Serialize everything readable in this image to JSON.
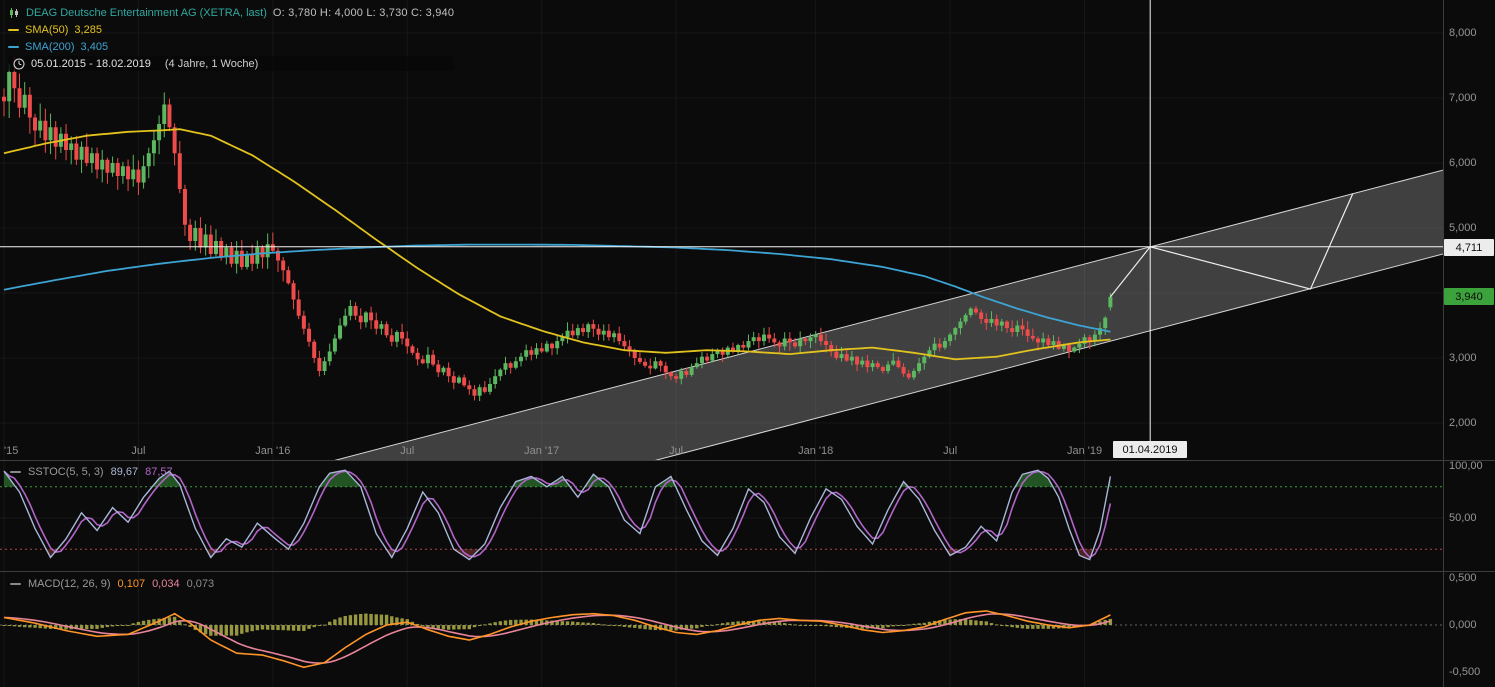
{
  "legend": {
    "instrument": "DEAG Deutsche Entertainment AG (XETRA, last)",
    "ohlc_text": "O: 3,780  H: 4,000  L: 3,730  C: 3,940",
    "sma50_label": "SMA(50)",
    "sma50_value": "3,285",
    "sma200_label": "SMA(200)",
    "sma200_value": "3,405",
    "range_text": "05.01.2015 - 18.02.2019",
    "range_note": "(4 Jahre, 1 Woche)"
  },
  "stoch_legend": {
    "name": "SSTOC(5, 5, 3)",
    "k": "89,67",
    "d": "87,57"
  },
  "macd_legend": {
    "name": "MACD(12, 26, 9)",
    "v1": "0,107",
    "v2": "0,034",
    "v3": "0,073"
  },
  "badges": {
    "price_cross": "4,711",
    "last_price": "3,940",
    "date_cross": "01.04.2019"
  },
  "colors": {
    "background": "#0b0b0b",
    "up": "#5cb860",
    "down": "#ee4b4b",
    "sma50": "#e2c21d",
    "sma200": "#3da3d2",
    "channel_fill": "rgba(173,173,173,0.33)",
    "channel_stroke": "#d5d5d5",
    "crosshair": "#f5f5f5",
    "stoch_k": "#a9b6d9",
    "stoch_d": "#b264c8",
    "overbought": "#3c9e3c",
    "oversold": "#b04848",
    "macd_hist": "#97973f",
    "macd_line": "#ff9528",
    "macd_signal": "#e8849a",
    "axis_text": "#969696",
    "divider": "#3d3d3d"
  },
  "chart_data": {
    "type": "candlestick",
    "interval": "1 Woche",
    "range": "05.01.2015 - 18.02.2019",
    "price_ticks": [
      {
        "v": 8.0,
        "label": "8,000"
      },
      {
        "v": 7.0,
        "label": "7,000"
      },
      {
        "v": 6.0,
        "label": "6,000"
      },
      {
        "v": 5.0,
        "label": "5,000"
      },
      {
        "v": 4.0,
        "label": "4,000"
      },
      {
        "v": 3.0,
        "label": "3,000"
      },
      {
        "v": 2.0,
        "label": "2,000"
      }
    ],
    "time_ticks": [
      {
        "week": 0,
        "label": "'15"
      },
      {
        "week": 26,
        "label": "Jul"
      },
      {
        "week": 52,
        "label": "Jan '16"
      },
      {
        "week": 78,
        "label": "Jul"
      },
      {
        "week": 104,
        "label": "Jan '17"
      },
      {
        "week": 130,
        "label": "Jul"
      },
      {
        "week": 157,
        "label": "Jan '18"
      },
      {
        "week": 183,
        "label": "Jul"
      },
      {
        "week": 209,
        "label": "Jan '19"
      }
    ],
    "closes": [
      6.95,
      7.4,
      7.15,
      6.85,
      7.05,
      6.7,
      6.5,
      6.65,
      6.35,
      6.55,
      6.25,
      6.45,
      6.2,
      6.3,
      6.05,
      6.25,
      6.0,
      6.15,
      5.9,
      6.05,
      5.85,
      6.0,
      5.8,
      5.95,
      5.75,
      5.9,
      5.7,
      5.95,
      6.15,
      6.35,
      6.6,
      6.9,
      6.55,
      6.15,
      5.6,
      5.05,
      4.8,
      5.0,
      4.7,
      4.9,
      4.6,
      4.8,
      4.55,
      4.7,
      4.45,
      4.65,
      4.4,
      4.6,
      4.45,
      4.7,
      4.55,
      4.75,
      4.65,
      4.5,
      4.35,
      4.15,
      3.9,
      3.65,
      3.45,
      3.25,
      3.0,
      2.8,
      2.95,
      3.1,
      3.3,
      3.5,
      3.65,
      3.8,
      3.65,
      3.55,
      3.7,
      3.58,
      3.45,
      3.52,
      3.35,
      3.25,
      3.4,
      3.3,
      3.18,
      3.08,
      2.98,
      2.92,
      3.05,
      2.9,
      2.78,
      2.85,
      2.72,
      2.62,
      2.7,
      2.58,
      2.52,
      2.42,
      2.55,
      2.48,
      2.6,
      2.72,
      2.82,
      2.92,
      2.85,
      2.95,
      3.02,
      3.12,
      3.05,
      3.15,
      3.1,
      3.22,
      3.15,
      3.26,
      3.32,
      3.42,
      3.35,
      3.46,
      3.4,
      3.52,
      3.45,
      3.36,
      3.42,
      3.32,
      3.38,
      3.26,
      3.18,
      3.1,
      3.0,
      2.94,
      2.88,
      2.84,
      2.95,
      2.88,
      2.78,
      2.72,
      2.68,
      2.8,
      2.74,
      2.86,
      2.92,
      3.02,
      2.96,
      3.06,
      3.12,
      3.05,
      3.16,
      3.1,
      3.2,
      3.16,
      3.26,
      3.32,
      3.26,
      3.36,
      3.3,
      3.24,
      3.18,
      3.3,
      3.24,
      3.18,
      3.3,
      3.26,
      3.32,
      3.36,
      3.26,
      3.2,
      3.1,
      3.0,
      3.06,
      2.96,
      3.02,
      2.9,
      2.96,
      2.86,
      2.92,
      2.86,
      2.8,
      2.9,
      2.96,
      2.86,
      2.76,
      2.7,
      2.8,
      2.92,
      3.02,
      3.12,
      3.22,
      3.16,
      3.26,
      3.36,
      3.46,
      3.56,
      3.66,
      3.76,
      3.7,
      3.6,
      3.54,
      3.6,
      3.5,
      3.56,
      3.46,
      3.4,
      3.5,
      3.44,
      3.34,
      3.3,
      3.24,
      3.3,
      3.2,
      3.26,
      3.14,
      3.2,
      3.1,
      3.16,
      3.22,
      3.32,
      3.26,
      3.36,
      3.46,
      3.62,
      3.94
    ],
    "last_candle": {
      "o": 3.78,
      "h": 4.0,
      "l": 3.73,
      "c": 3.94
    },
    "sma50": [
      [
        0,
        6.15
      ],
      [
        8,
        6.3
      ],
      [
        16,
        6.42
      ],
      [
        24,
        6.48
      ],
      [
        30,
        6.5
      ],
      [
        34,
        6.52
      ],
      [
        40,
        6.42
      ],
      [
        48,
        6.12
      ],
      [
        56,
        5.72
      ],
      [
        64,
        5.28
      ],
      [
        72,
        4.82
      ],
      [
        80,
        4.38
      ],
      [
        88,
        3.98
      ],
      [
        96,
        3.64
      ],
      [
        104,
        3.42
      ],
      [
        112,
        3.24
      ],
      [
        120,
        3.12
      ],
      [
        128,
        3.08
      ],
      [
        136,
        3.12
      ],
      [
        144,
        3.1
      ],
      [
        152,
        3.06
      ],
      [
        160,
        3.12
      ],
      [
        168,
        3.16
      ],
      [
        176,
        3.08
      ],
      [
        184,
        2.98
      ],
      [
        192,
        3.02
      ],
      [
        200,
        3.14
      ],
      [
        208,
        3.24
      ],
      [
        214,
        3.285
      ]
    ],
    "sma200": [
      [
        0,
        4.05
      ],
      [
        10,
        4.2
      ],
      [
        20,
        4.34
      ],
      [
        30,
        4.45
      ],
      [
        40,
        4.54
      ],
      [
        50,
        4.61
      ],
      [
        60,
        4.66
      ],
      [
        70,
        4.7
      ],
      [
        80,
        4.73
      ],
      [
        90,
        4.745
      ],
      [
        100,
        4.745
      ],
      [
        110,
        4.74
      ],
      [
        120,
        4.72
      ],
      [
        130,
        4.7
      ],
      [
        140,
        4.66
      ],
      [
        150,
        4.6
      ],
      [
        160,
        4.52
      ],
      [
        170,
        4.4
      ],
      [
        178,
        4.26
      ],
      [
        184,
        4.1
      ],
      [
        190,
        3.92
      ],
      [
        196,
        3.76
      ],
      [
        202,
        3.62
      ],
      [
        208,
        3.5
      ],
      [
        214,
        3.405
      ]
    ],
    "channel": {
      "upper": [
        [
          64,
          1.425
        ],
        [
          286,
          6.05
        ]
      ],
      "lower": [
        [
          126,
          1.425
        ],
        [
          286,
          4.76
        ]
      ]
    },
    "projection": [
      [
        214,
        3.94
      ],
      [
        221.7,
        4.711
      ],
      [
        252.7,
        4.06
      ],
      [
        260.9,
        5.53
      ]
    ],
    "crosshair": {
      "week": 221.7,
      "price": 4.711
    },
    "stoch": {
      "overbought": 80,
      "oversold": 20,
      "ticks": [
        {
          "v": 100,
          "label": "100,00"
        },
        {
          "v": 50,
          "label": "50,00"
        }
      ],
      "k_anchors": [
        [
          0,
          95
        ],
        [
          3,
          75
        ],
        [
          6,
          40
        ],
        [
          9,
          12
        ],
        [
          12,
          30
        ],
        [
          15,
          55
        ],
        [
          18,
          38
        ],
        [
          21,
          60
        ],
        [
          24,
          46
        ],
        [
          27,
          70
        ],
        [
          30,
          88
        ],
        [
          32,
          95
        ],
        [
          34,
          82
        ],
        [
          37,
          40
        ],
        [
          40,
          12
        ],
        [
          43,
          30
        ],
        [
          46,
          22
        ],
        [
          49,
          45
        ],
        [
          52,
          32
        ],
        [
          55,
          20
        ],
        [
          58,
          45
        ],
        [
          61,
          80
        ],
        [
          63,
          93
        ],
        [
          66,
          96
        ],
        [
          69,
          80
        ],
        [
          72,
          35
        ],
        [
          75,
          12
        ],
        [
          78,
          40
        ],
        [
          81,
          75
        ],
        [
          84,
          55
        ],
        [
          87,
          20
        ],
        [
          90,
          10
        ],
        [
          93,
          25
        ],
        [
          96,
          60
        ],
        [
          99,
          85
        ],
        [
          102,
          90
        ],
        [
          105,
          80
        ],
        [
          108,
          90
        ],
        [
          111,
          70
        ],
        [
          114,
          92
        ],
        [
          117,
          80
        ],
        [
          120,
          48
        ],
        [
          123,
          35
        ],
        [
          126,
          80
        ],
        [
          129,
          90
        ],
        [
          132,
          58
        ],
        [
          135,
          28
        ],
        [
          138,
          14
        ],
        [
          141,
          40
        ],
        [
          144,
          78
        ],
        [
          147,
          65
        ],
        [
          150,
          32
        ],
        [
          153,
          16
        ],
        [
          156,
          50
        ],
        [
          159,
          78
        ],
        [
          162,
          68
        ],
        [
          165,
          42
        ],
        [
          168,
          25
        ],
        [
          171,
          58
        ],
        [
          174,
          85
        ],
        [
          177,
          68
        ],
        [
          180,
          38
        ],
        [
          183,
          14
        ],
        [
          186,
          22
        ],
        [
          189,
          42
        ],
        [
          192,
          28
        ],
        [
          195,
          75
        ],
        [
          197,
          92
        ],
        [
          200,
          96
        ],
        [
          202,
          88
        ],
        [
          204,
          70
        ],
        [
          206,
          40
        ],
        [
          208,
          14
        ],
        [
          210,
          10
        ],
        [
          212,
          38
        ],
        [
          214,
          90
        ]
      ]
    },
    "macd": {
      "ticks": [
        {
          "v": 0.5,
          "label": "0,500"
        },
        {
          "v": 0,
          "label": "0,000"
        },
        {
          "v": -0.5,
          "label": "-0,500"
        }
      ],
      "anchors": [
        [
          0,
          0.08
        ],
        [
          6,
          0.02
        ],
        [
          12,
          -0.06
        ],
        [
          18,
          -0.12
        ],
        [
          24,
          -0.1
        ],
        [
          30,
          0.04
        ],
        [
          33,
          0.12
        ],
        [
          36,
          0.02
        ],
        [
          40,
          -0.16
        ],
        [
          45,
          -0.3
        ],
        [
          50,
          -0.32
        ],
        [
          54,
          -0.38
        ],
        [
          58,
          -0.45
        ],
        [
          62,
          -0.4
        ],
        [
          66,
          -0.24
        ],
        [
          70,
          -0.1
        ],
        [
          74,
          0.0
        ],
        [
          78,
          0.03
        ],
        [
          82,
          -0.05
        ],
        [
          86,
          -0.12
        ],
        [
          90,
          -0.16
        ],
        [
          94,
          -0.1
        ],
        [
          98,
          -0.02
        ],
        [
          102,
          0.04
        ],
        [
          106,
          0.08
        ],
        [
          110,
          0.11
        ],
        [
          114,
          0.12
        ],
        [
          118,
          0.1
        ],
        [
          122,
          0.05
        ],
        [
          126,
          -0.02
        ],
        [
          130,
          -0.08
        ],
        [
          134,
          -0.1
        ],
        [
          138,
          -0.06
        ],
        [
          142,
          0.0
        ],
        [
          146,
          0.05
        ],
        [
          150,
          0.07
        ],
        [
          154,
          0.05
        ],
        [
          158,
          0.04
        ],
        [
          162,
          0.0
        ],
        [
          166,
          -0.05
        ],
        [
          170,
          -0.08
        ],
        [
          174,
          -0.06
        ],
        [
          178,
          -0.02
        ],
        [
          182,
          0.06
        ],
        [
          186,
          0.13
        ],
        [
          190,
          0.15
        ],
        [
          194,
          0.1
        ],
        [
          198,
          0.04
        ],
        [
          202,
          0.0
        ],
        [
          206,
          -0.03
        ],
        [
          210,
          0.0
        ],
        [
          214,
          0.107
        ]
      ]
    }
  }
}
